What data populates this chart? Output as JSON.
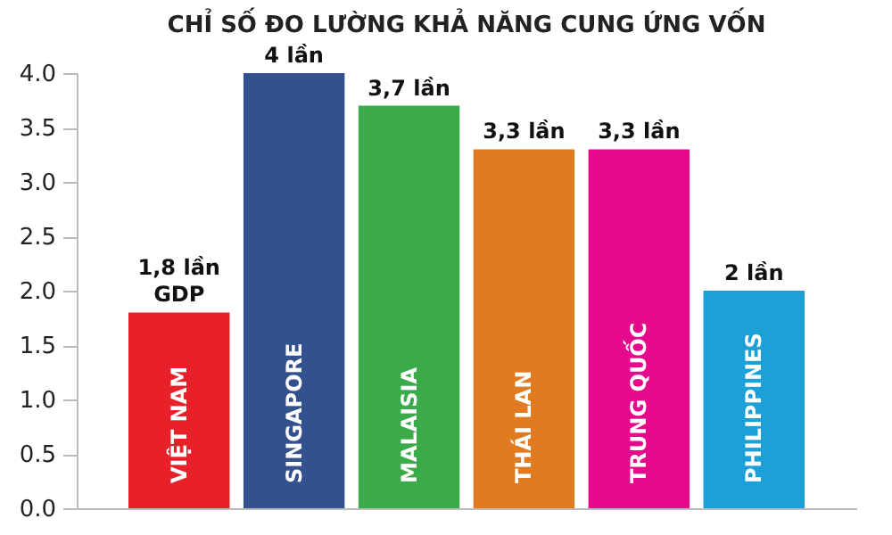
{
  "chart_data": {
    "type": "bar",
    "title": "CHỈ SỐ ĐO LƯỜNG KHẢ NĂNG CUNG ỨNG VỐN",
    "categories": [
      "VIỆT NAM",
      "SINGAPORE",
      "MALAISIA",
      "THÁI LAN",
      "TRUNG QUỐC",
      "PHILIPPINES"
    ],
    "values": [
      1.8,
      4,
      3.7,
      3.3,
      3.3,
      2
    ],
    "colors": [
      "#e8202a",
      "#33508f",
      "#3aab48",
      "#e07b22",
      "#e5098b",
      "#1ba0d8"
    ],
    "value_labels": [
      "1,8 lần\nGDP",
      "4 lần",
      "3,7 lần",
      "3,3 lần",
      "3,3 lần",
      "2 lần"
    ],
    "ylim": [
      0,
      4
    ],
    "yticks": [
      {
        "value": 0,
        "label": "0.0"
      },
      {
        "value": 0.5,
        "label": "0.5"
      },
      {
        "value": 1,
        "label": "1.0"
      },
      {
        "value": 1.5,
        "label": "1.5"
      },
      {
        "value": 2,
        "label": "2.0"
      },
      {
        "value": 2.5,
        "label": "2.5"
      },
      {
        "value": 3,
        "label": "3.0"
      },
      {
        "value": 3.5,
        "label": "3.5"
      },
      {
        "value": 4,
        "label": "4.0"
      }
    ],
    "grid": false,
    "tick_labels": "y"
  }
}
